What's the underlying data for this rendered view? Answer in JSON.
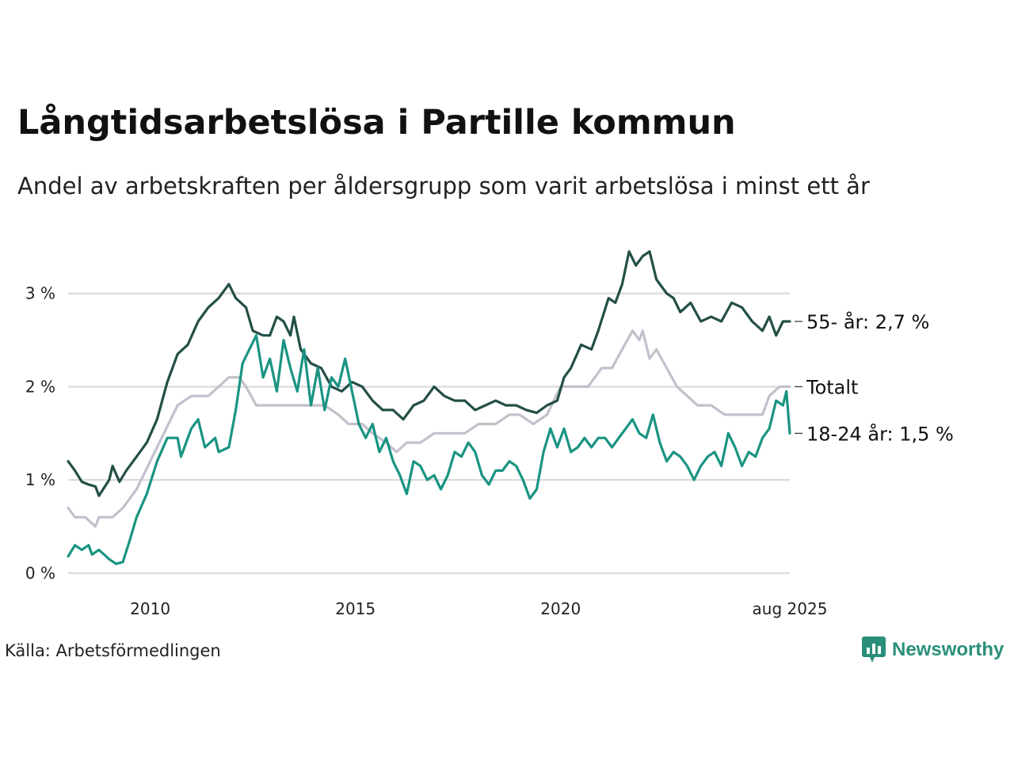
{
  "header": {
    "title": "Långtidsarbetslösa i Partille kommun",
    "subtitle": "Andel av arbetskraften per åldersgrupp som varit arbetslösa i minst ett år"
  },
  "footer": {
    "source": "Källa: Arbetsförmedlingen",
    "logo_text": "Newsworthy"
  },
  "colors": {
    "age_55": "#234f47",
    "total": "#c3c0cc",
    "age_18_24": "#1a9482",
    "grid": "#dddddd",
    "brand": "#2a8f7a"
  },
  "chart_data": {
    "type": "line",
    "title": "Långtidsarbetslösa i Partille kommun",
    "subtitle": "Andel av arbetskraften per åldersgrupp som varit arbetslösa i minst ett år",
    "xlabel": "",
    "ylabel": "",
    "xlim": [
      "2008-01",
      "2025-08"
    ],
    "ylim": [
      0,
      3.6
    ],
    "x_ticks": [
      {
        "value": "2010-01",
        "label": "2010"
      },
      {
        "value": "2015-01",
        "label": "2015"
      },
      {
        "value": "2020-01",
        "label": "2020"
      },
      {
        "value": "2025-08",
        "label": "aug 2025"
      }
    ],
    "y_ticks": [
      {
        "value": 0,
        "label": "0 %"
      },
      {
        "value": 1,
        "label": "1 %"
      },
      {
        "value": 2,
        "label": "2 %"
      },
      {
        "value": 3,
        "label": "3 %"
      }
    ],
    "grid": true,
    "legend": "none",
    "series": [
      {
        "name": "Totalt",
        "end_label": "Totalt",
        "color": "#c3c0cc",
        "points": [
          [
            "2008-01",
            0.7
          ],
          [
            "2008-03",
            0.6
          ],
          [
            "2008-06",
            0.6
          ],
          [
            "2008-09",
            0.5
          ],
          [
            "2008-10",
            0.6
          ],
          [
            "2009-02",
            0.6
          ],
          [
            "2009-05",
            0.7
          ],
          [
            "2009-09",
            0.9
          ],
          [
            "2010-01",
            1.2
          ],
          [
            "2010-05",
            1.5
          ],
          [
            "2010-09",
            1.8
          ],
          [
            "2011-01",
            1.9
          ],
          [
            "2011-06",
            1.9
          ],
          [
            "2011-09",
            2.0
          ],
          [
            "2011-12",
            2.1
          ],
          [
            "2012-03",
            2.1
          ],
          [
            "2012-05",
            2.0
          ],
          [
            "2012-08",
            1.8
          ],
          [
            "2012-12",
            1.8
          ],
          [
            "2013-03",
            1.8
          ],
          [
            "2013-06",
            1.8
          ],
          [
            "2013-09",
            1.8
          ],
          [
            "2014-01",
            1.8
          ],
          [
            "2014-04",
            1.8
          ],
          [
            "2014-08",
            1.7
          ],
          [
            "2014-11",
            1.6
          ],
          [
            "2015-03",
            1.6
          ],
          [
            "2015-06",
            1.5
          ],
          [
            "2015-10",
            1.4
          ],
          [
            "2016-01",
            1.3
          ],
          [
            "2016-04",
            1.4
          ],
          [
            "2016-08",
            1.4
          ],
          [
            "2016-12",
            1.5
          ],
          [
            "2017-04",
            1.5
          ],
          [
            "2017-09",
            1.5
          ],
          [
            "2018-01",
            1.6
          ],
          [
            "2018-06",
            1.6
          ],
          [
            "2018-10",
            1.7
          ],
          [
            "2019-01",
            1.7
          ],
          [
            "2019-05",
            1.6
          ],
          [
            "2019-09",
            1.7
          ],
          [
            "2020-01",
            2.0
          ],
          [
            "2020-05",
            2.0
          ],
          [
            "2020-09",
            2.0
          ],
          [
            "2021-01",
            2.2
          ],
          [
            "2021-04",
            2.2
          ],
          [
            "2021-07",
            2.4
          ],
          [
            "2021-10",
            2.6
          ],
          [
            "2021-12",
            2.5
          ],
          [
            "2022-01",
            2.6
          ],
          [
            "2022-03",
            2.3
          ],
          [
            "2022-05",
            2.4
          ],
          [
            "2022-08",
            2.2
          ],
          [
            "2022-11",
            2.0
          ],
          [
            "2023-02",
            1.9
          ],
          [
            "2023-05",
            1.8
          ],
          [
            "2023-09",
            1.8
          ],
          [
            "2024-01",
            1.7
          ],
          [
            "2024-04",
            1.7
          ],
          [
            "2024-08",
            1.7
          ],
          [
            "2024-12",
            1.7
          ],
          [
            "2025-02",
            1.9
          ],
          [
            "2025-05",
            2.0
          ],
          [
            "2025-08",
            2.0
          ]
        ]
      },
      {
        "name": "55- år",
        "end_label": "55- år: 2,7 %",
        "color": "#234f47",
        "points": [
          [
            "2008-01",
            1.2
          ],
          [
            "2008-03",
            1.1
          ],
          [
            "2008-05",
            0.98
          ],
          [
            "2008-07",
            0.95
          ],
          [
            "2008-09",
            0.93
          ],
          [
            "2008-10",
            0.83
          ],
          [
            "2009-01",
            1.0
          ],
          [
            "2009-02",
            1.15
          ],
          [
            "2009-04",
            0.98
          ],
          [
            "2009-06",
            1.1
          ],
          [
            "2009-09",
            1.25
          ],
          [
            "2009-12",
            1.4
          ],
          [
            "2010-03",
            1.65
          ],
          [
            "2010-06",
            2.05
          ],
          [
            "2010-09",
            2.35
          ],
          [
            "2010-12",
            2.45
          ],
          [
            "2011-03",
            2.7
          ],
          [
            "2011-06",
            2.85
          ],
          [
            "2011-09",
            2.95
          ],
          [
            "2011-12",
            3.1
          ],
          [
            "2012-02",
            2.95
          ],
          [
            "2012-05",
            2.85
          ],
          [
            "2012-07",
            2.6
          ],
          [
            "2012-10",
            2.55
          ],
          [
            "2012-12",
            2.55
          ],
          [
            "2013-02",
            2.75
          ],
          [
            "2013-04",
            2.7
          ],
          [
            "2013-06",
            2.55
          ],
          [
            "2013-07",
            2.75
          ],
          [
            "2013-09",
            2.4
          ],
          [
            "2013-12",
            2.25
          ],
          [
            "2014-03",
            2.2
          ],
          [
            "2014-06",
            2.0
          ],
          [
            "2014-09",
            1.95
          ],
          [
            "2014-12",
            2.05
          ],
          [
            "2015-03",
            2.0
          ],
          [
            "2015-06",
            1.85
          ],
          [
            "2015-09",
            1.75
          ],
          [
            "2015-12",
            1.75
          ],
          [
            "2016-03",
            1.65
          ],
          [
            "2016-06",
            1.8
          ],
          [
            "2016-09",
            1.85
          ],
          [
            "2016-12",
            2.0
          ],
          [
            "2017-03",
            1.9
          ],
          [
            "2017-06",
            1.85
          ],
          [
            "2017-09",
            1.85
          ],
          [
            "2017-12",
            1.75
          ],
          [
            "2018-03",
            1.8
          ],
          [
            "2018-06",
            1.85
          ],
          [
            "2018-09",
            1.8
          ],
          [
            "2018-12",
            1.8
          ],
          [
            "2019-03",
            1.75
          ],
          [
            "2019-06",
            1.72
          ],
          [
            "2019-09",
            1.8
          ],
          [
            "2019-12",
            1.85
          ],
          [
            "2020-02",
            2.1
          ],
          [
            "2020-04",
            2.2
          ],
          [
            "2020-07",
            2.45
          ],
          [
            "2020-10",
            2.4
          ],
          [
            "2020-12",
            2.6
          ],
          [
            "2021-03",
            2.95
          ],
          [
            "2021-05",
            2.9
          ],
          [
            "2021-07",
            3.1
          ],
          [
            "2021-09",
            3.45
          ],
          [
            "2021-11",
            3.3
          ],
          [
            "2022-01",
            3.4
          ],
          [
            "2022-03",
            3.45
          ],
          [
            "2022-05",
            3.15
          ],
          [
            "2022-08",
            3.0
          ],
          [
            "2022-10",
            2.95
          ],
          [
            "2022-12",
            2.8
          ],
          [
            "2023-03",
            2.9
          ],
          [
            "2023-06",
            2.7
          ],
          [
            "2023-09",
            2.75
          ],
          [
            "2023-12",
            2.7
          ],
          [
            "2024-03",
            2.9
          ],
          [
            "2024-06",
            2.85
          ],
          [
            "2024-09",
            2.7
          ],
          [
            "2024-12",
            2.6
          ],
          [
            "2025-02",
            2.75
          ],
          [
            "2025-04",
            2.55
          ],
          [
            "2025-06",
            2.7
          ],
          [
            "2025-08",
            2.7
          ]
        ]
      },
      {
        "name": "18-24 år",
        "end_label": "18-24 år: 1,5 %",
        "color": "#1a9482",
        "points": [
          [
            "2008-01",
            0.18
          ],
          [
            "2008-03",
            0.3
          ],
          [
            "2008-05",
            0.25
          ],
          [
            "2008-07",
            0.3
          ],
          [
            "2008-08",
            0.2
          ],
          [
            "2008-10",
            0.25
          ],
          [
            "2009-01",
            0.15
          ],
          [
            "2009-03",
            0.1
          ],
          [
            "2009-05",
            0.12
          ],
          [
            "2009-07",
            0.35
          ],
          [
            "2009-09",
            0.6
          ],
          [
            "2009-12",
            0.85
          ],
          [
            "2010-03",
            1.2
          ],
          [
            "2010-06",
            1.45
          ],
          [
            "2010-09",
            1.45
          ],
          [
            "2010-10",
            1.25
          ],
          [
            "2011-01",
            1.55
          ],
          [
            "2011-03",
            1.65
          ],
          [
            "2011-05",
            1.35
          ],
          [
            "2011-08",
            1.45
          ],
          [
            "2011-09",
            1.3
          ],
          [
            "2011-12",
            1.35
          ],
          [
            "2012-02",
            1.75
          ],
          [
            "2012-04",
            2.25
          ],
          [
            "2012-06",
            2.4
          ],
          [
            "2012-08",
            2.55
          ],
          [
            "2012-10",
            2.1
          ],
          [
            "2012-12",
            2.3
          ],
          [
            "2013-02",
            1.95
          ],
          [
            "2013-04",
            2.5
          ],
          [
            "2013-06",
            2.2
          ],
          [
            "2013-08",
            1.95
          ],
          [
            "2013-10",
            2.4
          ],
          [
            "2013-12",
            1.8
          ],
          [
            "2014-02",
            2.2
          ],
          [
            "2014-04",
            1.75
          ],
          [
            "2014-06",
            2.1
          ],
          [
            "2014-08",
            2.0
          ],
          [
            "2014-10",
            2.3
          ],
          [
            "2014-12",
            1.95
          ],
          [
            "2015-02",
            1.6
          ],
          [
            "2015-04",
            1.45
          ],
          [
            "2015-06",
            1.6
          ],
          [
            "2015-08",
            1.3
          ],
          [
            "2015-10",
            1.45
          ],
          [
            "2015-12",
            1.2
          ],
          [
            "2016-02",
            1.05
          ],
          [
            "2016-04",
            0.85
          ],
          [
            "2016-06",
            1.2
          ],
          [
            "2016-08",
            1.15
          ],
          [
            "2016-10",
            1.0
          ],
          [
            "2016-12",
            1.05
          ],
          [
            "2017-02",
            0.9
          ],
          [
            "2017-04",
            1.05
          ],
          [
            "2017-06",
            1.3
          ],
          [
            "2017-08",
            1.25
          ],
          [
            "2017-10",
            1.4
          ],
          [
            "2017-12",
            1.3
          ],
          [
            "2018-02",
            1.05
          ],
          [
            "2018-04",
            0.95
          ],
          [
            "2018-06",
            1.1
          ],
          [
            "2018-08",
            1.1
          ],
          [
            "2018-10",
            1.2
          ],
          [
            "2018-12",
            1.15
          ],
          [
            "2019-02",
            1.0
          ],
          [
            "2019-04",
            0.8
          ],
          [
            "2019-06",
            0.9
          ],
          [
            "2019-08",
            1.3
          ],
          [
            "2019-10",
            1.55
          ],
          [
            "2019-12",
            1.35
          ],
          [
            "2020-02",
            1.55
          ],
          [
            "2020-04",
            1.3
          ],
          [
            "2020-06",
            1.35
          ],
          [
            "2020-08",
            1.45
          ],
          [
            "2020-10",
            1.35
          ],
          [
            "2020-12",
            1.45
          ],
          [
            "2021-02",
            1.45
          ],
          [
            "2021-04",
            1.35
          ],
          [
            "2021-06",
            1.45
          ],
          [
            "2021-08",
            1.55
          ],
          [
            "2021-10",
            1.65
          ],
          [
            "2021-12",
            1.5
          ],
          [
            "2022-02",
            1.45
          ],
          [
            "2022-04",
            1.7
          ],
          [
            "2022-06",
            1.4
          ],
          [
            "2022-08",
            1.2
          ],
          [
            "2022-10",
            1.3
          ],
          [
            "2022-12",
            1.25
          ],
          [
            "2023-02",
            1.15
          ],
          [
            "2023-04",
            1.0
          ],
          [
            "2023-06",
            1.15
          ],
          [
            "2023-08",
            1.25
          ],
          [
            "2023-10",
            1.3
          ],
          [
            "2023-12",
            1.15
          ],
          [
            "2024-02",
            1.5
          ],
          [
            "2024-04",
            1.35
          ],
          [
            "2024-06",
            1.15
          ],
          [
            "2024-08",
            1.3
          ],
          [
            "2024-10",
            1.25
          ],
          [
            "2024-12",
            1.45
          ],
          [
            "2025-02",
            1.55
          ],
          [
            "2025-04",
            1.85
          ],
          [
            "2025-06",
            1.8
          ],
          [
            "2025-07",
            1.95
          ],
          [
            "2025-08",
            1.5
          ]
        ]
      }
    ]
  }
}
